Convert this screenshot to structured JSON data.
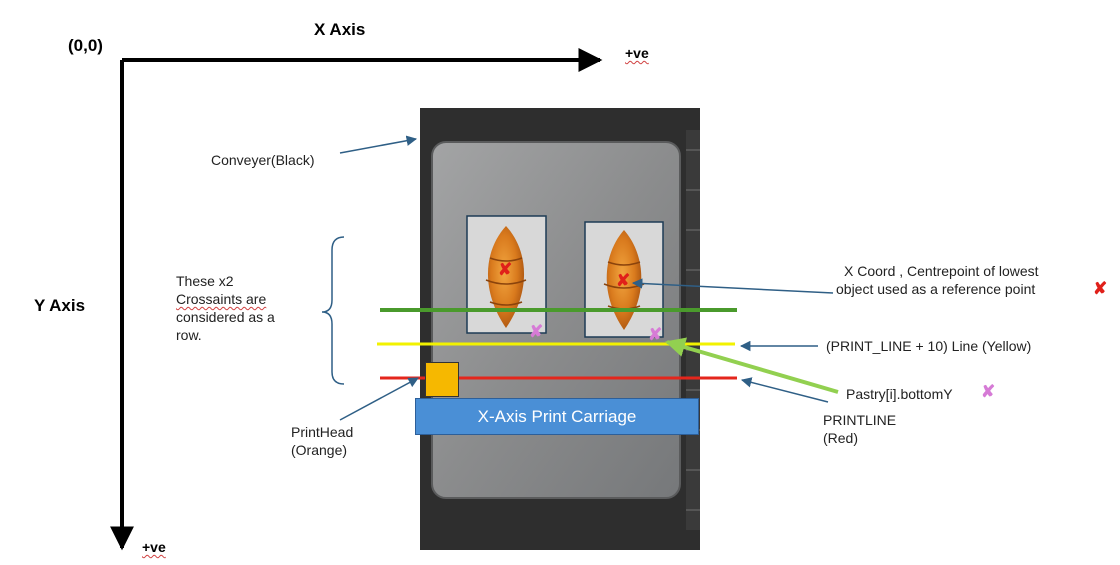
{
  "axes": {
    "origin": "(0,0)",
    "x_title": "X Axis",
    "x_positive": "+ve",
    "y_title": "Y Axis",
    "y_positive": "+ve"
  },
  "labels": {
    "conveyor": "Conveyer(Black)",
    "row_note": [
      "These x2",
      "Crossaints are",
      "considered as a",
      "row."
    ],
    "ref_note": [
      "X Coord , Centrepoint of lowest",
      "object  used as a reference point"
    ],
    "yellow_line": "(PRINT_LINE + 10) Line (Yellow)",
    "bottom_y": "Pastry[i].bottomY",
    "printline": [
      "PRINTLINE",
      "(Red)"
    ],
    "printhead": [
      "PrintHead",
      "(Orange)"
    ],
    "carriage": "X-Axis Print Carriage"
  },
  "colors": {
    "conveyor": "#2e2e2e",
    "tray": "#8f9091",
    "green_line": "#4a9a2c",
    "yellow_line": "#f2f200",
    "red_line": "#e4261c",
    "pink_mark": "#d67bd6",
    "red_mark": "#e0201a",
    "carriage": "#4a8fd6",
    "printhead": "#f6b800",
    "callout_arrow": "#2f5f86",
    "green_arrow": "#92d050"
  },
  "markers": {
    "reference": "✘",
    "bottom": "✘"
  }
}
